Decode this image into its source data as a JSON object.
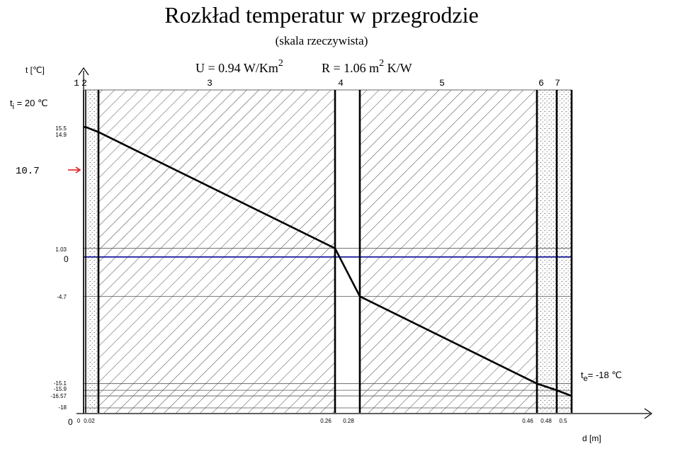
{
  "title": "Rozkład temperatur w przegrodzie",
  "subtitle": "(skala rzeczywista)",
  "u_label": "U = 0.94 W/Km",
  "u_sup": "2",
  "r_label_a": "R = 1.06 m",
  "r_sup": "2",
  "r_label_b": " K/W",
  "y_axis_label": "t [℃]",
  "x_axis_label": "d [m]",
  "ti_label": "t",
  "ti_sub": "i",
  "ti_value": " = 20 ℃",
  "te_label": "t",
  "te_sub": "e",
  "te_value": "= -18 ℃",
  "marker_value": "10.7",
  "origin_label": "0",
  "zero_label": "0",
  "layer_numbers": [
    "1",
    "2",
    "3",
    "4",
    "5",
    "6",
    "7"
  ],
  "x_ticks": [
    "0",
    "0.02",
    "0.26",
    "0.28",
    "0.46",
    "0.48",
    "0.5"
  ],
  "y_ticks": [
    "15.5",
    "14.9",
    "1.03",
    "-4.7",
    "-15.1",
    "-15.9",
    "-16.57",
    "-18"
  ],
  "colors": {
    "zero_line": "#1a1aa0",
    "marker": "#e02020",
    "profile": "#000000"
  },
  "chart_data": {
    "type": "line",
    "xlabel": "d [m]",
    "ylabel": "t [℃]",
    "layer_boundaries": [
      0,
      0.002,
      0.02,
      0.26,
      0.28,
      0.46,
      0.48,
      0.5
    ],
    "layer_fill": [
      "none",
      "dots",
      "hatch",
      "none",
      "hatch",
      "dots",
      "dots"
    ],
    "series": [
      {
        "x": [
          0,
          0.002,
          0.02,
          0.26,
          0.28,
          0.46,
          0.48,
          0.5
        ],
        "y": [
          15.5,
          15.5,
          14.9,
          1.03,
          -4.7,
          -15.1,
          -15.9,
          -16.57
        ]
      }
    ],
    "t_internal": 20,
    "t_external": -18,
    "marker": 10.7,
    "ylim": [
      -18,
      20
    ],
    "xlim": [
      0,
      0.5
    ]
  }
}
